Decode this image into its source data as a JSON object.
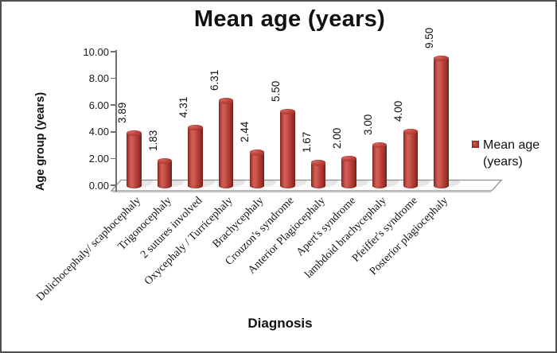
{
  "title": "Mean age (years)",
  "legend": {
    "line1": "Mean age",
    "line2": "(years)",
    "series": "Mean age (years)",
    "marker_color": "#b03a31"
  },
  "axes": {
    "x_title": "Diagnosis",
    "y_title": "Age group (years)",
    "y_ticks": [
      "0.00",
      "2.00",
      "4.00",
      "6.00",
      "8.00",
      "10.00"
    ]
  },
  "chart_data": {
    "type": "bar",
    "bar_style": "3d-cylinder",
    "title": "Mean age (years)",
    "xlabel": "Diagnosis",
    "ylabel": "Age group (years)",
    "ylim": [
      0,
      10
    ],
    "grid": false,
    "legend_position": "right",
    "bar_color": "#c0443b",
    "categories": [
      "Dolichocephaly/ scaphocephaly",
      "Trigonocephaly",
      "2 sutures involved",
      "Oxycephaly / Turricephaly",
      "Brachycephaly",
      "Crouzon's syndrome",
      "Anterior Plagiocephaly",
      "Apert's syndrome",
      "lambdoid brachycephaly",
      "Pfeiffer's syndrome",
      "Posterior plagiocephaly"
    ],
    "series": [
      {
        "name": "Mean age (years)",
        "values": [
          3.89,
          1.83,
          4.31,
          6.31,
          2.44,
          5.5,
          1.67,
          2.0,
          3.0,
          4.0,
          9.5
        ]
      }
    ],
    "value_labels": [
      "3.89",
      "1.83",
      "4.31",
      "6.31",
      "2.44",
      "5.50",
      "1.67",
      "2.00",
      "3.00",
      "4.00",
      "9.50"
    ]
  }
}
